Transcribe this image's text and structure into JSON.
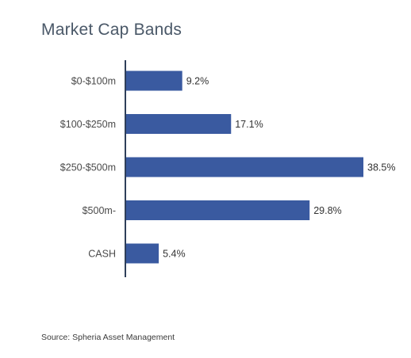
{
  "chart_data": {
    "type": "bar",
    "orientation": "horizontal",
    "title": "Market Cap Bands",
    "categories": [
      "$0-$100m",
      "$100-$250m",
      "$250-$500m",
      "$500m-",
      "CASH"
    ],
    "values": [
      9.2,
      17.1,
      38.5,
      29.8,
      5.4
    ],
    "value_labels": [
      "9.2%",
      "17.1%",
      "38.5%",
      "29.8%",
      "5.4%"
    ],
    "xlim": [
      0,
      38.5
    ],
    "grid": false,
    "bar_color": "#3a5aa0",
    "axis_color": "#2f3f5a"
  },
  "source": "Source: Spheria Asset Management"
}
